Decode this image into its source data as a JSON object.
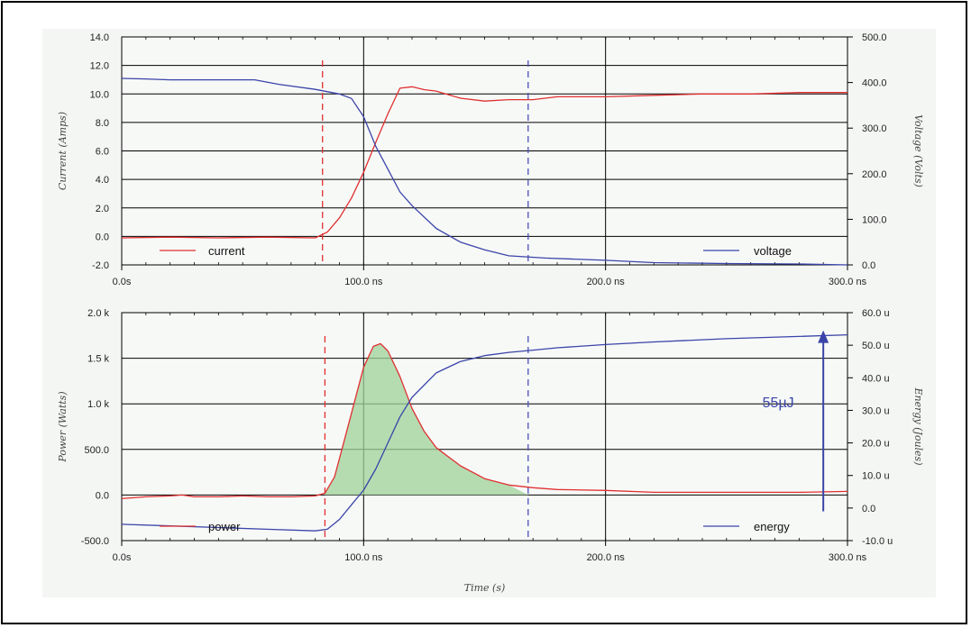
{
  "chart_data": [
    {
      "type": "line",
      "x_range_ns": [
        0,
        300
      ],
      "x_ticks": [
        "0.0s",
        "100.0 ns",
        "200.0 ns",
        "300.0 ns"
      ],
      "y_left": {
        "label": "Current (Amps)",
        "range": [
          -2.0,
          14.0
        ],
        "ticks": [
          "-2.0",
          "0.0",
          "2.0",
          "4.0",
          "6.0",
          "8.0",
          "10.0",
          "12.0",
          "14.0"
        ]
      },
      "y_right": {
        "label": "Voltage (Volts)",
        "range": [
          0,
          500
        ],
        "ticks": [
          "0.0",
          "100.0",
          "200.0",
          "300.0",
          "400.0",
          "500.0"
        ]
      },
      "grid": true,
      "cursors_ns": [
        {
          "x": 83,
          "color": "#e03030"
        },
        {
          "x": 168,
          "color": "#4a50b8"
        }
      ],
      "series": [
        {
          "name": "current",
          "axis": "left",
          "color": "#e03030",
          "x": [
            0,
            20,
            40,
            60,
            80,
            85,
            90,
            95,
            100,
            105,
            110,
            115,
            120,
            125,
            130,
            140,
            150,
            160,
            170,
            180,
            200,
            220,
            240,
            260,
            280,
            300
          ],
          "y": [
            -0.1,
            -0.05,
            -0.1,
            -0.05,
            -0.1,
            0.3,
            1.3,
            2.7,
            4.5,
            6.6,
            8.6,
            10.4,
            10.5,
            10.3,
            10.2,
            9.7,
            9.5,
            9.6,
            9.6,
            9.8,
            9.8,
            9.9,
            10.0,
            10.0,
            10.1,
            10.1
          ]
        },
        {
          "name": "voltage",
          "axis": "right",
          "color": "#3a44a8",
          "x": [
            0,
            10,
            20,
            40,
            55,
            65,
            80,
            90,
            95,
            100,
            105,
            110,
            115,
            120,
            130,
            140,
            150,
            160,
            175,
            200,
            220,
            250,
            280,
            300
          ],
          "y": [
            409,
            408,
            406,
            406,
            406,
            396,
            385,
            375,
            365,
            325,
            260,
            210,
            160,
            130,
            80,
            50,
            33,
            20,
            15,
            10,
            5,
            3,
            2,
            0
          ]
        }
      ],
      "legend": [
        {
          "label": "current",
          "position": "bottom-left"
        },
        {
          "label": "voltage",
          "position": "bottom-right"
        }
      ]
    },
    {
      "type": "area",
      "x_range_ns": [
        0,
        300
      ],
      "x_ticks": [
        "0.0s",
        "100.0 ns",
        "200.0 ns",
        "300.0 ns"
      ],
      "xlabel": "Time (s)",
      "y_left": {
        "label": "Power (Watts)",
        "range": [
          -500,
          2000
        ],
        "ticks": [
          "-500.0",
          "0.0",
          "500.0",
          "1.0 k",
          "1.5 k",
          "2.0 k"
        ]
      },
      "y_right": {
        "label": "Energy (Joules)",
        "range": [
          -10,
          60
        ],
        "ticks": [
          "-10.0 u",
          "0.0",
          "10.0 u",
          "20.0 u",
          "30.0 u",
          "40.0 u",
          "50.0 u",
          "60.0 u"
        ]
      },
      "grid": true,
      "cursors_ns": [
        {
          "x": 84,
          "color": "#e03030"
        },
        {
          "x": 168,
          "color": "#4a50b8"
        }
      ],
      "shaded_region_ns": [
        84,
        168
      ],
      "shade_color": "#9fd09a",
      "series": [
        {
          "name": "power",
          "axis": "left",
          "color": "#e03030",
          "x": [
            0,
            10,
            20,
            25,
            30,
            40,
            50,
            60,
            70,
            80,
            84,
            88,
            92,
            96,
            100,
            104,
            107,
            110,
            115,
            120,
            125,
            130,
            140,
            150,
            160,
            170,
            180,
            200,
            220,
            250,
            280,
            300
          ],
          "y": [
            -40,
            -20,
            -10,
            0,
            -20,
            -20,
            -10,
            -20,
            -20,
            -10,
            20,
            200,
            600,
            1000,
            1400,
            1630,
            1660,
            1580,
            1300,
            950,
            700,
            520,
            320,
            180,
            110,
            80,
            60,
            50,
            30,
            30,
            30,
            40
          ]
        },
        {
          "name": "energy",
          "axis": "right",
          "color": "#3a44a8",
          "x": [
            0,
            20,
            40,
            60,
            80,
            85,
            90,
            95,
            100,
            105,
            110,
            115,
            120,
            130,
            140,
            150,
            160,
            170,
            180,
            200,
            220,
            250,
            280,
            300
          ],
          "y": [
            -5.0,
            -5.5,
            -6.0,
            -6.5,
            -7.0,
            -6.5,
            -3.5,
            1.0,
            5.5,
            12.0,
            20.0,
            28.0,
            34.0,
            41.5,
            45.0,
            46.8,
            47.8,
            48.5,
            49.2,
            50.2,
            51.0,
            52.0,
            52.7,
            53.2
          ]
        }
      ],
      "annotation": {
        "text": "55µJ",
        "color": "#3a44a8",
        "arrow_x_ns": 290,
        "arrow_from": -1,
        "arrow_to": 54
      },
      "legend": [
        {
          "label": "power",
          "position": "bottom-left"
        },
        {
          "label": "energy",
          "position": "bottom-right"
        }
      ]
    }
  ]
}
